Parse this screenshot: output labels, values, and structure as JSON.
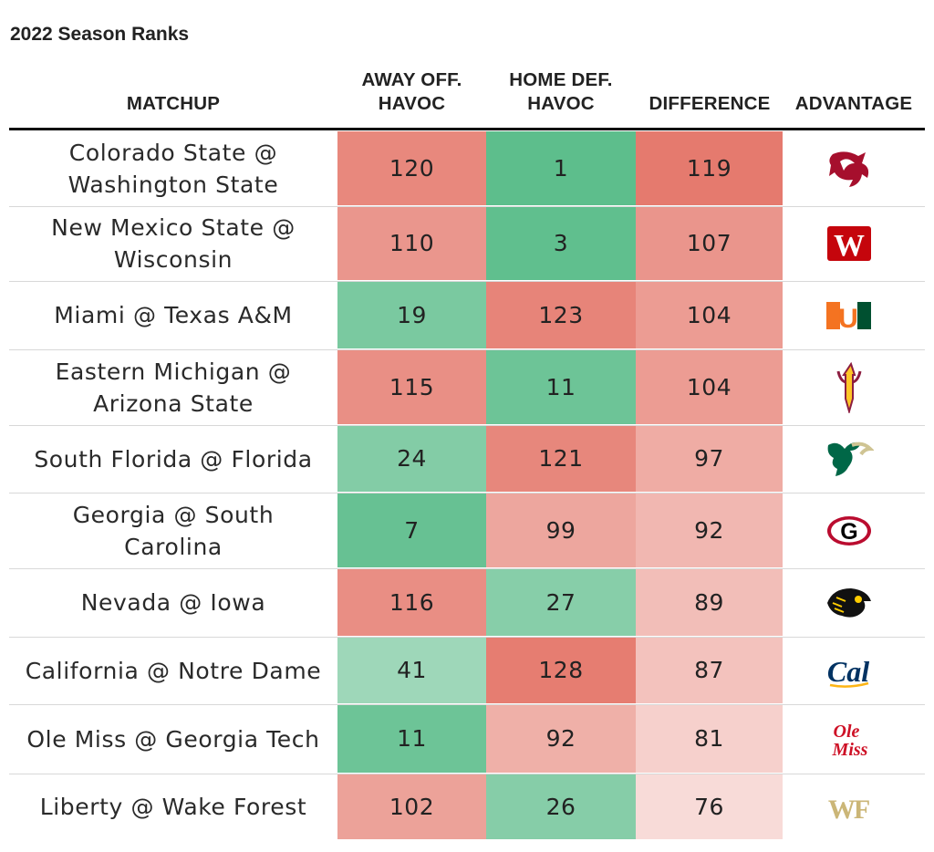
{
  "title": "2022 Season Ranks",
  "headers": {
    "matchup": "MATCHUP",
    "away_off_1": "AWAY OFF.",
    "away_off_2": "HAVOC",
    "home_def_1": "HOME DEF.",
    "home_def_2": "HAVOC",
    "difference": "DIFFERENCE",
    "advantage": "ADVANTAGE"
  },
  "rows": [
    {
      "m1": "Colorado State @",
      "m2": "Washington State",
      "away": "120",
      "home": "1",
      "diff": "119",
      "logo": "washington-state-logo"
    },
    {
      "m1": "New Mexico State @",
      "m2": "Wisconsin",
      "away": "110",
      "home": "3",
      "diff": "107",
      "logo": "wisconsin-logo"
    },
    {
      "m1": "Miami @ Texas A&M",
      "m2": "",
      "away": "19",
      "home": "123",
      "diff": "104",
      "logo": "miami-logo"
    },
    {
      "m1": "Eastern Michigan @",
      "m2": "Arizona State",
      "away": "115",
      "home": "11",
      "diff": "104",
      "logo": "arizona-state-logo"
    },
    {
      "m1": "South Florida @ Florida",
      "m2": "",
      "away": "24",
      "home": "121",
      "diff": "97",
      "logo": "south-florida-logo"
    },
    {
      "m1": "Georgia @ South",
      "m2": "Carolina",
      "away": "7",
      "home": "99",
      "diff": "92",
      "logo": "georgia-logo"
    },
    {
      "m1": "Nevada @ Iowa",
      "m2": "",
      "away": "116",
      "home": "27",
      "diff": "89",
      "logo": "iowa-logo"
    },
    {
      "m1": "California @ Notre Dame",
      "m2": "",
      "away": "41",
      "home": "128",
      "diff": "87",
      "logo": "california-logo"
    },
    {
      "m1": "Ole Miss @ Georgia Tech",
      "m2": "",
      "away": "11",
      "home": "92",
      "diff": "81",
      "logo": "ole-miss-logo"
    },
    {
      "m1": "Liberty @ Wake Forest",
      "m2": "",
      "away": "102",
      "home": "26",
      "diff": "76",
      "logo": "wake-forest-logo"
    }
  ],
  "logo_text": {
    "wisconsin-logo": "W",
    "miami-logo": "U",
    "georgia-logo": "G",
    "california-logo": "Cal",
    "ole-miss-logo": "Ole Miss",
    "wake-forest-logo": "WF"
  },
  "colors": {
    "worst_red": "#e57a6e",
    "best_green": "#5bbd8b",
    "light_red": "#f6d6d2",
    "light_green": "#c6e6d4",
    "rule": "#111111"
  },
  "chart_data": {
    "type": "table",
    "title": "2022 Season Ranks",
    "columns": [
      "MATCHUP",
      "AWAY OFF. HAVOC",
      "HOME DEF. HAVOC",
      "DIFFERENCE",
      "ADVANTAGE"
    ],
    "rows": [
      [
        "Colorado State @ Washington State",
        120,
        1,
        119,
        "Washington State"
      ],
      [
        "New Mexico State @ Wisconsin",
        110,
        3,
        107,
        "Wisconsin"
      ],
      [
        "Miami @ Texas A&M",
        19,
        123,
        104,
        "Miami"
      ],
      [
        "Eastern Michigan @ Arizona State",
        115,
        11,
        104,
        "Arizona State"
      ],
      [
        "South Florida @ Florida",
        24,
        121,
        97,
        "South Florida"
      ],
      [
        "Georgia @ South Carolina",
        7,
        99,
        92,
        "Georgia"
      ],
      [
        "Nevada @ Iowa",
        116,
        27,
        89,
        "Iowa"
      ],
      [
        "California @ Notre Dame",
        41,
        128,
        87,
        "California"
      ],
      [
        "Ole Miss @ Georgia Tech",
        11,
        92,
        81,
        "Ole Miss"
      ],
      [
        "Liberty @ Wake Forest",
        102,
        26,
        76,
        "Wake Forest"
      ]
    ]
  }
}
